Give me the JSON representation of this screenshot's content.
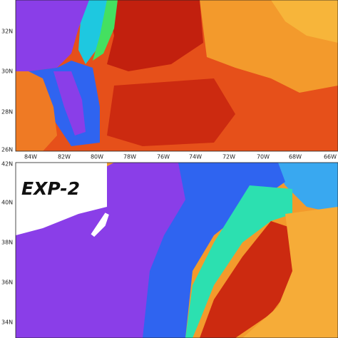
{
  "top_panel": {
    "lat_labels": [
      "32N",
      "30N",
      "28N",
      "26N"
    ],
    "lon_labels": [
      "84W",
      "82W",
      "80W",
      "78W",
      "76W",
      "74W",
      "72W",
      "70W",
      "68W",
      "66W"
    ]
  },
  "bottom_panel": {
    "label": "EXP-2",
    "lat_labels": [
      "42N",
      "40N",
      "38N",
      "36N",
      "34N"
    ]
  }
}
